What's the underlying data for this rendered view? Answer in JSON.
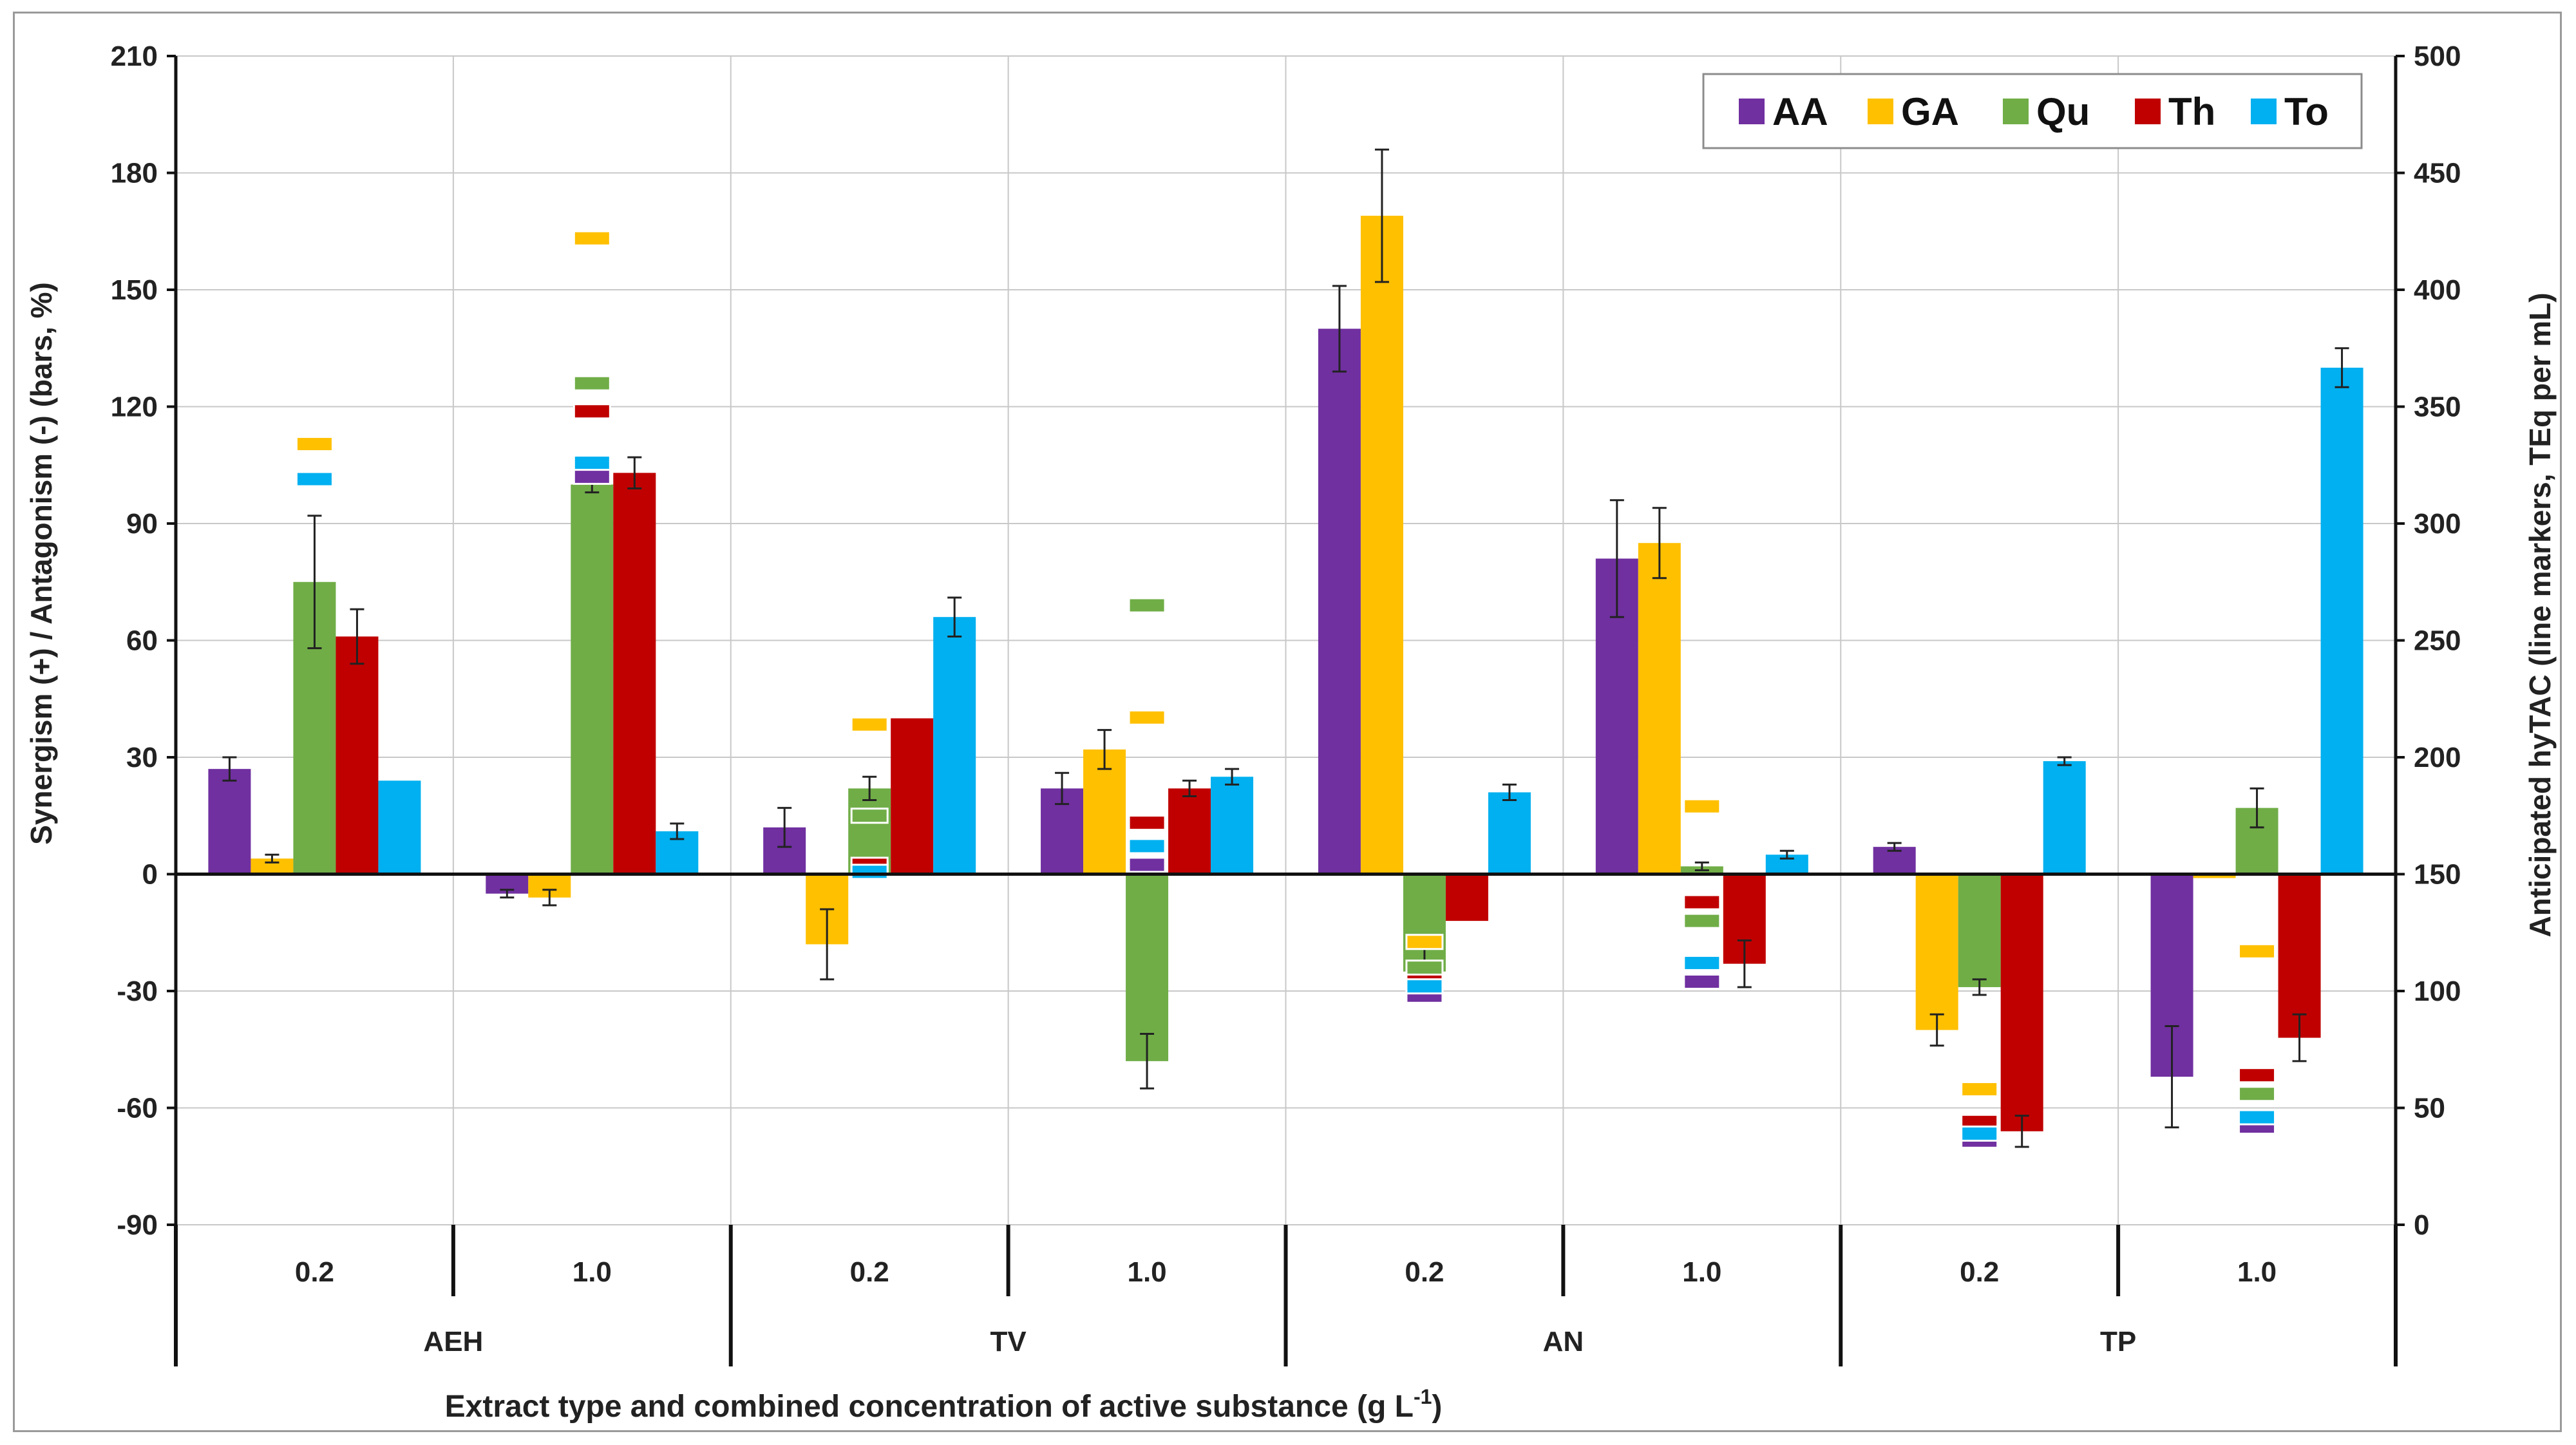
{
  "chart_data": {
    "type": "bar",
    "title": "",
    "xlabel_main": "Extract type and combined concentration of active substance (g L",
    "xlabel_sup": "-1",
    "xlabel_close": ")",
    "ylabel_left": "Synergism (+) / Antagonism (-) (bars, %)",
    "ylabel_right": "Anticipated hyTAC (line markers, TEq per mL)",
    "ylim_left": [
      -90,
      210
    ],
    "ylim_right": [
      0,
      500
    ],
    "yticks_left": [
      "210",
      "180",
      "150",
      "120",
      "90",
      "60",
      "30",
      "0",
      "-30",
      "-60",
      "-90"
    ],
    "yticks_right": [
      "500",
      "450",
      "400",
      "350",
      "300",
      "250",
      "200",
      "150",
      "100",
      "50",
      "0"
    ],
    "groups": [
      "AEH",
      "TV",
      "AN",
      "TP"
    ],
    "concentrations": [
      "0.2",
      "1.0",
      "0.2",
      "1.0",
      "0.2",
      "1.0",
      "0.2",
      "1.0"
    ],
    "legend_position": "top-right",
    "grid": true,
    "series": [
      {
        "name": "AA",
        "color": "#7030A0",
        "values": [
          27,
          -5,
          12,
          22,
          140,
          81,
          7,
          -52
        ],
        "errors": [
          3,
          1,
          5,
          4,
          11,
          15,
          1,
          13
        ],
        "markers": [
          null,
          320,
          152,
          154,
          98,
          104,
          36,
          42
        ]
      },
      {
        "name": "GA",
        "color": "#FFC000",
        "values": [
          4,
          -6,
          -18,
          32,
          169,
          85,
          -40,
          -1
        ],
        "errors": [
          1,
          2,
          9,
          5,
          17,
          9,
          4,
          0
        ],
        "markers": [
          334,
          422,
          214,
          217,
          121,
          179,
          58,
          117
        ]
      },
      {
        "name": "Qu",
        "color": "#70AD47",
        "values": [
          75,
          100,
          22,
          -48,
          -25,
          2,
          -29,
          17
        ],
        "errors": [
          17,
          2,
          3,
          7,
          6,
          1,
          2,
          5
        ],
        "markers": [
          null,
          360,
          175,
          265,
          110,
          130,
          40,
          56
        ]
      },
      {
        "name": "Th",
        "color": "#C00000",
        "values": [
          61,
          103,
          40,
          22,
          -12,
          -23,
          -66,
          -42
        ],
        "errors": [
          7,
          4,
          0,
          2,
          0,
          6,
          4,
          6
        ],
        "markers": [
          null,
          348,
          154,
          172,
          104,
          138,
          44,
          64
        ]
      },
      {
        "name": "To",
        "color": "#00B0F0",
        "values": [
          24,
          11,
          66,
          25,
          21,
          5,
          29,
          130
        ],
        "errors": [
          0,
          2,
          5,
          2,
          2,
          1,
          1,
          5
        ],
        "markers": [
          319,
          326,
          151,
          162,
          102,
          112,
          39,
          46
        ]
      }
    ]
  }
}
